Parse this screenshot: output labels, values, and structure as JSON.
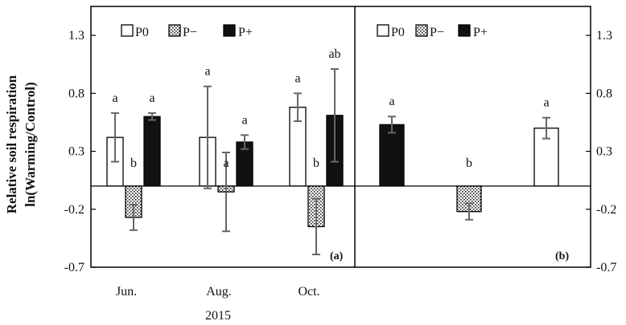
{
  "chart_data": {
    "type": "bar",
    "ylabel_line1": "Relative soil respiration",
    "ylabel_line2": "ln(Warming/Control)",
    "ylim": [
      -0.7,
      1.55
    ],
    "yticks": [
      "1.3",
      "0.8",
      "0.3",
      "-0.2",
      "-0.7"
    ],
    "ytick_values": [
      1.3,
      0.8,
      0.3,
      -0.2,
      -0.7
    ],
    "series_names": [
      "P0",
      "P−",
      "P+"
    ],
    "panels": [
      {
        "tag": "(a)",
        "categories": [
          "Jun.",
          "Aug.",
          "Oct."
        ],
        "year": "2015",
        "series": [
          {
            "name": "P0",
            "style": "white",
            "values": [
              0.42,
              0.42,
              0.68
            ],
            "errors": [
              0.21,
              0.44,
              0.12
            ],
            "letters": [
              "a",
              "a",
              "a"
            ]
          },
          {
            "name": "P−",
            "style": "dotted",
            "values": [
              -0.27,
              -0.05,
              -0.35
            ],
            "errors": [
              0.11,
              0.34,
              0.24
            ],
            "letters": [
              "b",
              "a",
              "b"
            ]
          },
          {
            "name": "P+",
            "style": "black",
            "values": [
              0.6,
              0.38,
              0.61
            ],
            "errors": [
              0.03,
              0.06,
              0.4
            ],
            "letters": [
              "a",
              "a",
              "ab"
            ]
          }
        ]
      },
      {
        "tag": "(b)",
        "bars": [
          {
            "name": "P+",
            "style": "black",
            "value": 0.53,
            "error": 0.07,
            "letter": "a"
          },
          {
            "name": "P−",
            "style": "dotted",
            "value": -0.22,
            "error": 0.07,
            "letter": "b"
          },
          {
            "name": "P0",
            "style": "white",
            "value": 0.5,
            "error": 0.09,
            "letter": "a"
          }
        ]
      }
    ]
  }
}
